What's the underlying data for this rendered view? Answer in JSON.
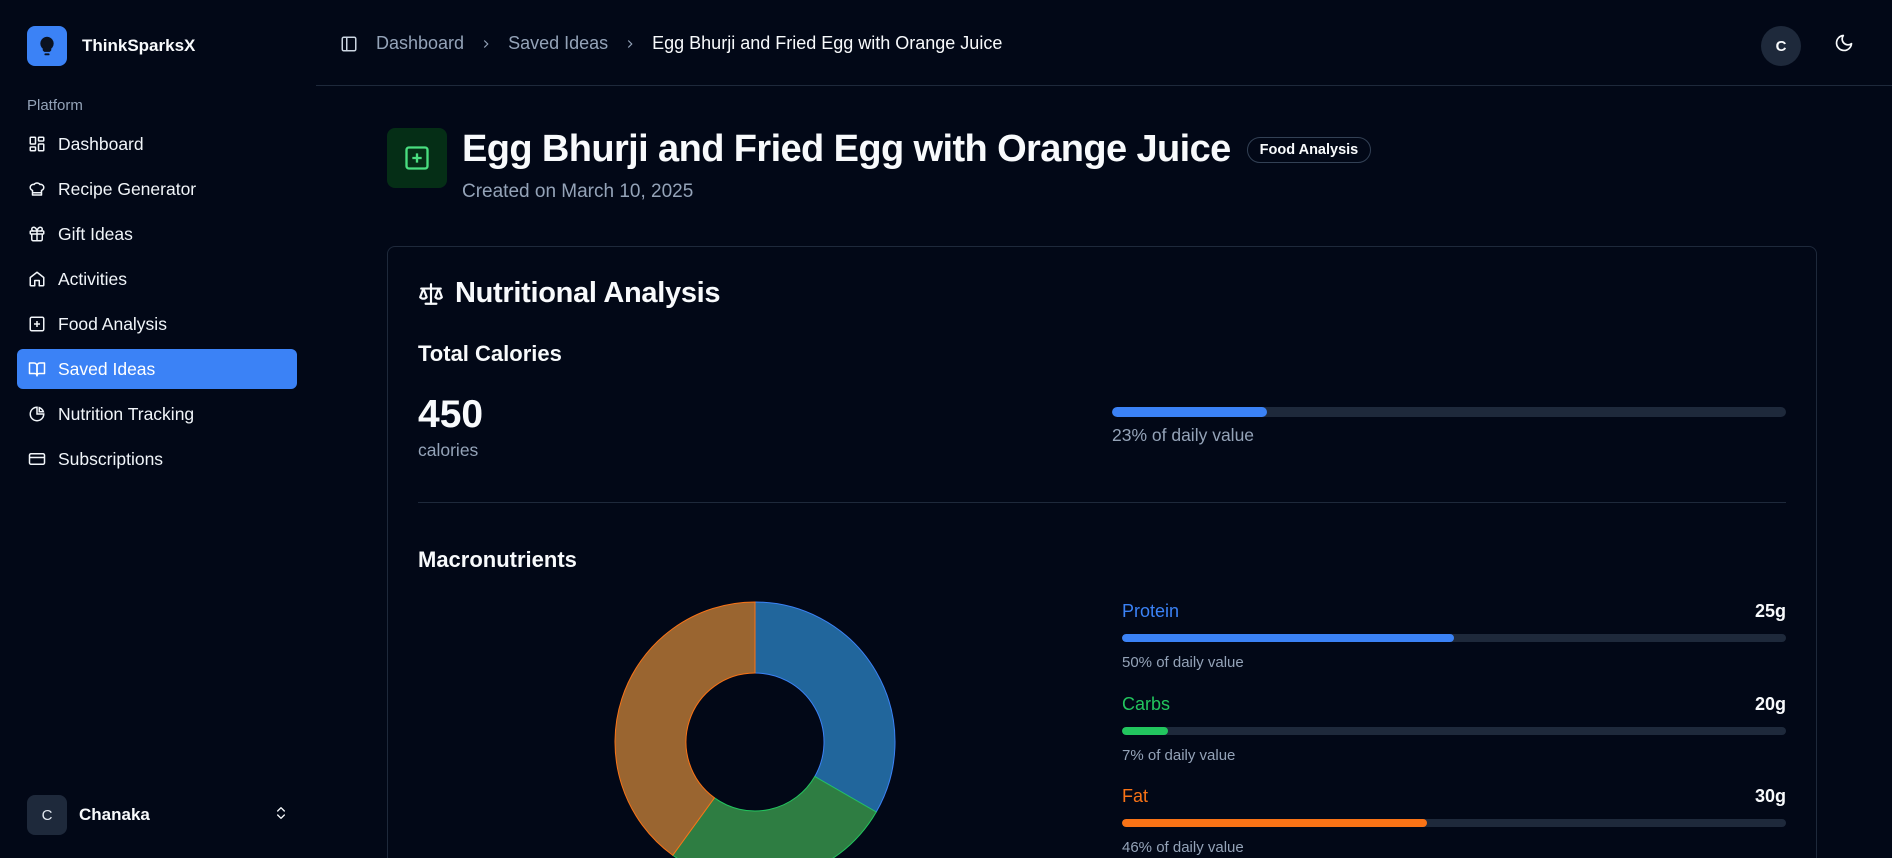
{
  "app": {
    "name": "ThinkSparksX"
  },
  "sidebar": {
    "section_label": "Platform",
    "items": [
      {
        "label": "Dashboard",
        "icon": "grid-icon"
      },
      {
        "label": "Recipe Generator",
        "icon": "chef-hat-icon"
      },
      {
        "label": "Gift Ideas",
        "icon": "gift-icon"
      },
      {
        "label": "Activities",
        "icon": "home-icon"
      },
      {
        "label": "Food Analysis",
        "icon": "plus-square-icon"
      },
      {
        "label": "Saved Ideas",
        "icon": "book-open-icon",
        "active": true
      },
      {
        "label": "Nutrition Tracking",
        "icon": "pie-chart-icon"
      },
      {
        "label": "Subscriptions",
        "icon": "credit-card-icon"
      }
    ],
    "user": {
      "initial": "C",
      "name": "Chanaka"
    }
  },
  "header": {
    "breadcrumbs": [
      "Dashboard",
      "Saved Ideas",
      "Egg Bhurji and Fried Egg with Orange Juice"
    ],
    "avatar_initial": "C"
  },
  "page": {
    "title": "Egg Bhurji and Fried Egg with Orange Juice",
    "badge": "Food Analysis",
    "subtitle": "Created on March 10, 2025"
  },
  "analysis": {
    "title": "Nutritional Analysis",
    "total_calories_label": "Total Calories",
    "calories_value": "450",
    "calories_unit": "calories",
    "calories_daily_fraction": 0.23,
    "calories_daily_text": "23% of daily value",
    "macros_label": "Macronutrients"
  },
  "colors": {
    "accent": "#3b82f6",
    "protein": "#3b82f6",
    "carbs": "#22c55e",
    "fat": "#f97316",
    "donut_protein": "#21669c",
    "donut_carbs": "#2e7d42",
    "donut_fat": "#9a6530"
  },
  "chart_data": {
    "type": "pie",
    "categories": [
      "Protein",
      "Carbs",
      "Fat"
    ],
    "values": [
      25,
      20,
      30
    ],
    "unit": "g",
    "daily_value_percent": [
      50,
      7,
      46
    ],
    "daily_value_text": [
      "50% of daily value",
      "7% of daily value",
      "46% of daily value"
    ],
    "value_labels": [
      "25g",
      "20g",
      "30g"
    ]
  }
}
